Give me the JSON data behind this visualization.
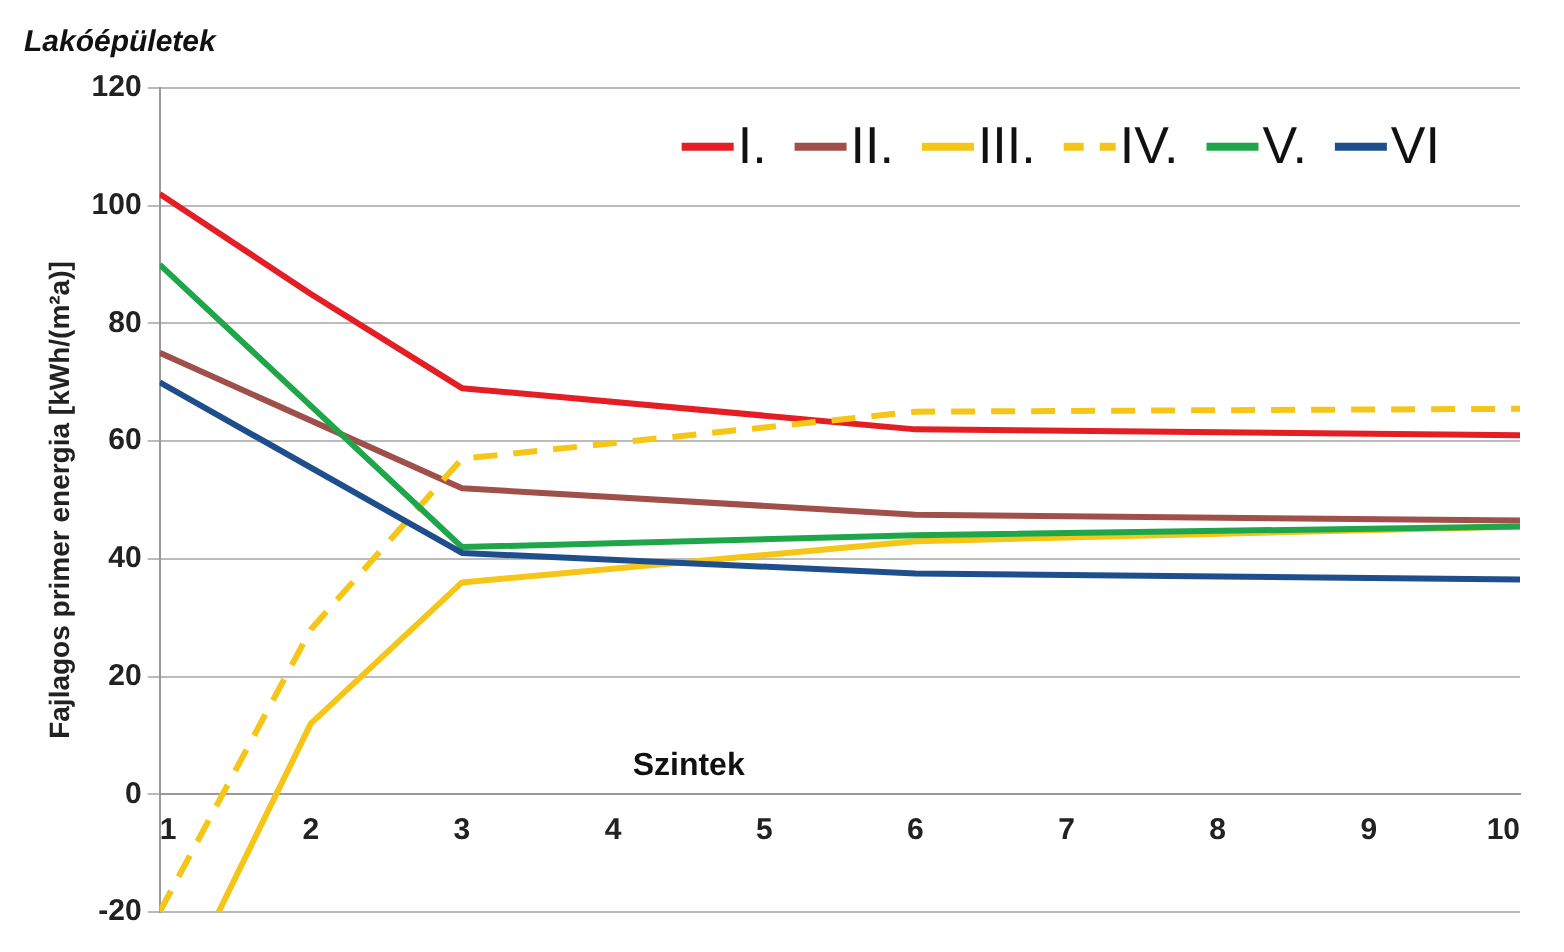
{
  "chart_data": {
    "type": "line",
    "title": "Lakóépületek",
    "xlabel": "Szintek",
    "ylabel": "Fajlagos primer energia [kWh/(m²a)]",
    "xlim": [
      1,
      10
    ],
    "xticks": [
      1,
      2,
      3,
      4,
      5,
      6,
      7,
      8,
      9,
      10
    ],
    "ylim": [
      -20,
      120
    ],
    "yticks": [
      -20,
      0,
      20,
      40,
      60,
      80,
      100,
      120
    ],
    "grid": "y",
    "legend": "top right",
    "marker": "none",
    "series": [
      {
        "name": "I.",
        "color": "#e31e24",
        "x": [
          1,
          2,
          3,
          6,
          10
        ],
        "values": [
          102,
          85,
          69,
          62,
          61
        ]
      },
      {
        "name": "II.",
        "color": "#a0504a",
        "x": [
          1,
          3,
          6,
          10
        ],
        "values": [
          75,
          52,
          47.5,
          46.5
        ]
      },
      {
        "name": "III.",
        "color": "#f5c518",
        "x": [
          1.39,
          2,
          3,
          6,
          10
        ],
        "values": [
          -20,
          12,
          36,
          43,
          45.5
        ]
      },
      {
        "name": "IV.",
        "color": "#f5c518",
        "line_style": "dashed",
        "x": [
          1,
          2,
          3,
          6,
          10
        ],
        "values": [
          -20,
          28,
          57,
          65,
          65.5
        ]
      },
      {
        "name": "V.",
        "color": "#1fa64a",
        "x": [
          1,
          3,
          6,
          10
        ],
        "values": [
          90,
          42,
          44,
          45.5
        ]
      },
      {
        "name": "VI",
        "color": "#1f4e8c",
        "x": [
          1,
          3,
          6,
          10
        ],
        "values": [
          70,
          41,
          37.5,
          36.5
        ]
      }
    ]
  }
}
